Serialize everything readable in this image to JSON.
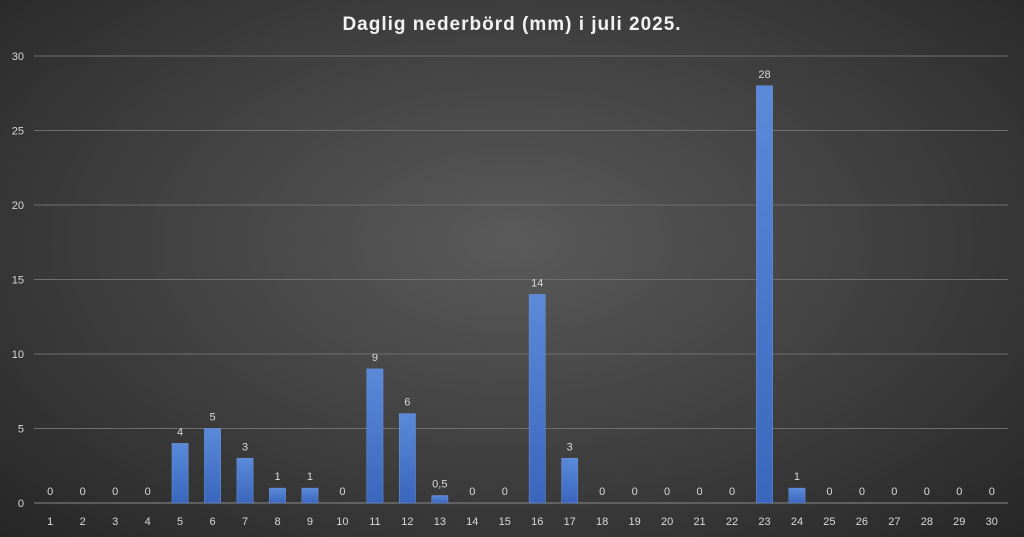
{
  "chart_data": {
    "type": "bar",
    "title": "Daglig nederbörd (mm) i juli 2025.",
    "xlabel": "",
    "ylabel": "",
    "ylim": [
      0,
      30
    ],
    "yticks": [
      0,
      5,
      10,
      15,
      20,
      25,
      30
    ],
    "grid": true,
    "legend": "none",
    "bar_color": "#4472c4",
    "categories": [
      "1",
      "2",
      "3",
      "4",
      "5",
      "6",
      "7",
      "8",
      "9",
      "10",
      "11",
      "12",
      "13",
      "14",
      "15",
      "16",
      "17",
      "18",
      "19",
      "20",
      "21",
      "22",
      "23",
      "24",
      "25",
      "26",
      "27",
      "28",
      "29",
      "30"
    ],
    "values": [
      0,
      0,
      0,
      0,
      4,
      5,
      3,
      1,
      1,
      0,
      9,
      6,
      0.5,
      0,
      0,
      14,
      3,
      0,
      0,
      0,
      0,
      0,
      28,
      1,
      0,
      0,
      0,
      0,
      0,
      0
    ],
    "data_labels": [
      "0",
      "0",
      "0",
      "0",
      "4",
      "5",
      "3",
      "1",
      "1",
      "0",
      "9",
      "6",
      "0,5",
      "0",
      "0",
      "14",
      "3",
      "0",
      "0",
      "0",
      "0",
      "0",
      "28",
      "1",
      "0",
      "0",
      "0",
      "0",
      "0",
      "0"
    ]
  }
}
